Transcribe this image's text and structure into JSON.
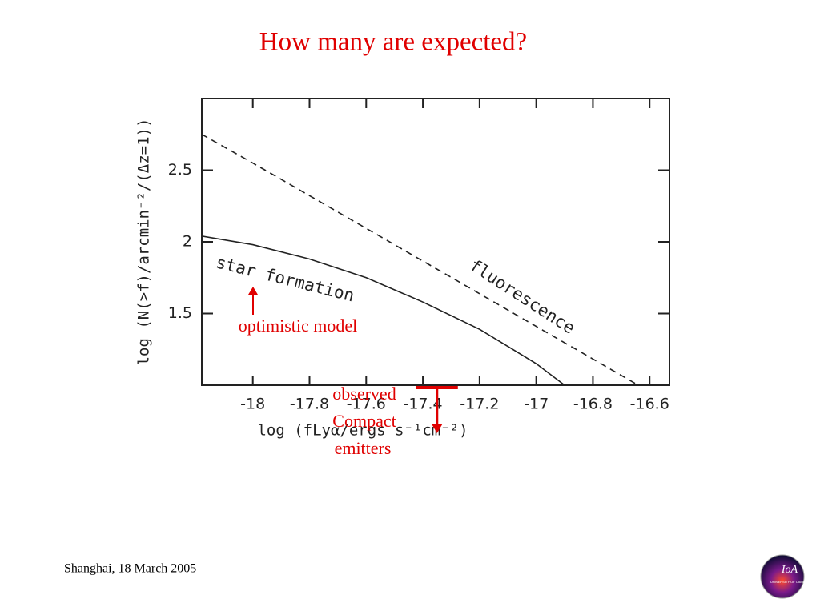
{
  "chart_data": {
    "type": "line",
    "title": "How many are expected?",
    "x_label": "log (fLyα/ergs s⁻¹cm⁻²)",
    "y_label": "log (N(>f)/arcmin⁻²/(Δz=1))",
    "xlim": [
      -18.18,
      -16.53
    ],
    "ylim": [
      1.0,
      3.0
    ],
    "xticks": [
      -18,
      -17.8,
      -17.6,
      -17.4,
      -17.2,
      -17,
      -16.8,
      -16.6
    ],
    "yticks": [
      1.5,
      2,
      2.5
    ],
    "series": [
      {
        "name": "star formation",
        "color": "#222222",
        "dash": false,
        "x": [
          -18.18,
          -18,
          -17.8,
          -17.6,
          -17.4,
          -17.2,
          -17,
          -16.9
        ],
        "values": [
          2.04,
          1.98,
          1.88,
          1.75,
          1.58,
          1.39,
          1.15,
          1.0
        ]
      },
      {
        "name": "fluorescence",
        "color": "#222222",
        "dash": true,
        "x": [
          -18.18,
          -18,
          -17.5,
          -17,
          -16.64
        ],
        "values": [
          2.75,
          2.55,
          1.98,
          1.41,
          1.0
        ]
      }
    ],
    "annotations": [
      {
        "text": "optimistic model"
      },
      {
        "text": "observed"
      },
      {
        "text": "Compact"
      },
      {
        "text": "emitters"
      }
    ],
    "observed_limit_x": -17.35,
    "footer": "Shanghai, 18 March  2005",
    "logo": {
      "text": "IoA",
      "subtext": "UNIVERSITY OF CAMBRIDGE"
    }
  }
}
